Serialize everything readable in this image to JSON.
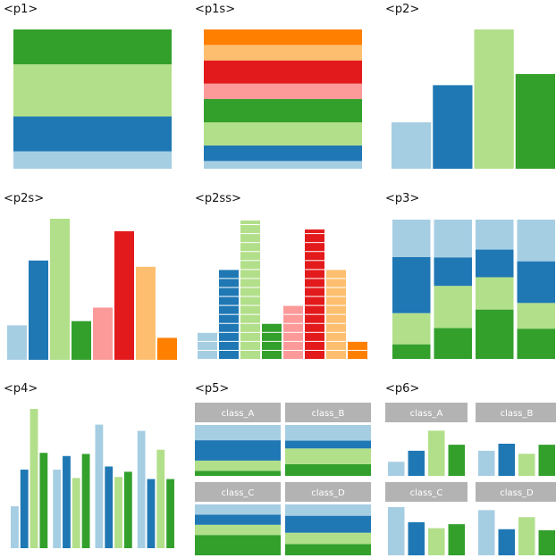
{
  "colors": [
    "#a6cee3",
    "#1f78b4",
    "#b2df8a",
    "#33a02c",
    "#fb9a99",
    "#e31a1c",
    "#fdbf6f",
    "#ff7f00"
  ],
  "strip_color": "#b3b3b3",
  "chart_data": [
    {
      "id": "p1",
      "title": "<p1>",
      "type": "bar",
      "values": [
        1,
        2,
        3,
        2
      ]
    },
    {
      "id": "p1s",
      "title": "<p1s>",
      "type": "bar",
      "values": [
        1,
        2,
        3,
        3,
        2,
        3,
        2,
        2
      ]
    },
    {
      "id": "p2",
      "title": "<p2>",
      "type": "bar",
      "values": [
        5,
        9,
        15,
        10.2
      ]
    },
    {
      "id": "p2s",
      "title": "<p2s>",
      "type": "bar",
      "values": [
        3.3,
        9.5,
        13.5,
        3.7,
        5,
        12.3,
        8.9,
        2.1
      ]
    },
    {
      "id": "p2ss",
      "title": "<p2ss>",
      "type": "bar",
      "values": [
        3,
        10,
        15.5,
        4,
        6,
        14.5,
        10,
        2
      ]
    },
    {
      "id": "p3",
      "title": "<p3>",
      "type": "bar",
      "stacks": [
        [
          3,
          6.4,
          11.5,
          7.7
        ],
        [
          6.4,
          8.7,
          5.9,
          7.8
        ],
        [
          12.7,
          8.3,
          7.1,
          7.7
        ],
        [
          7.4,
          6.3,
          10.2,
          10.2
        ]
      ]
    },
    {
      "id": "p4",
      "title": "<p4>",
      "type": "bar",
      "groups": [
        [
          4,
          7.5,
          13.3,
          9.1
        ],
        [
          7.5,
          8.8,
          6.7,
          9
        ],
        [
          11.8,
          7.8,
          6.8,
          7.3
        ],
        [
          11.2,
          6.6,
          9.4,
          6.6
        ]
      ]
    },
    {
      "id": "p5",
      "title": "<p5>",
      "type": "bar",
      "panels": [
        {
          "label": "class_A",
          "values": [
            1,
            2,
            4,
            3
          ]
        },
        {
          "label": "class_B",
          "values": [
            3,
            4,
            2,
            4
          ]
        },
        {
          "label": "class_C",
          "values": [
            4,
            2,
            2,
            2
          ]
        },
        {
          "label": "class_D",
          "values": [
            2,
            2,
            3,
            2
          ]
        }
      ]
    },
    {
      "id": "p6",
      "title": "<p6>",
      "type": "bar",
      "panels": [
        {
          "label": "class_A",
          "values": [
            1.4,
            2.5,
            4.5,
            3.1
          ]
        },
        {
          "label": "class_B",
          "values": [
            2.5,
            3.2,
            2.2,
            3.1
          ]
        },
        {
          "label": "class_C",
          "values": [
            4.8,
            3.3,
            2.7,
            3.1
          ]
        },
        {
          "label": "class_D",
          "values": [
            4.5,
            2.6,
            3.8,
            2.5
          ]
        }
      ]
    }
  ]
}
